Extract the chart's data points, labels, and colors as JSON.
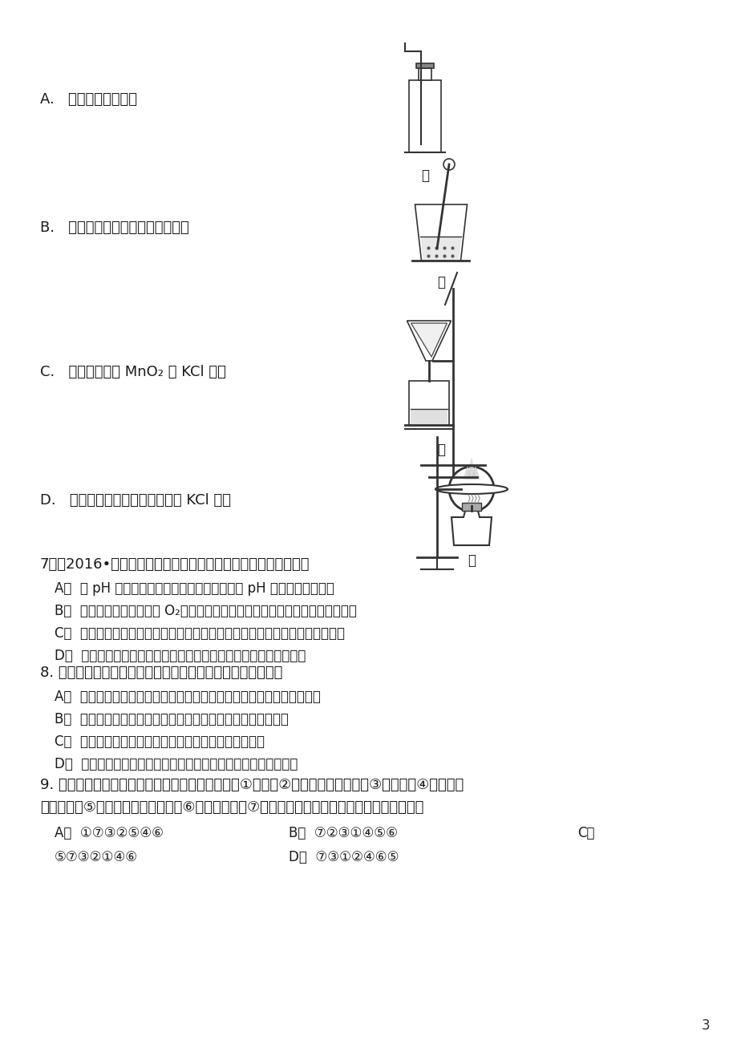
{
  "bg_color": "#ffffff",
  "text_color": "#1a1a1a",
  "page_number": "3",
  "q7_title": "7．（2016•应城市一模）下列有关实验的叙述正确的是（　　）",
  "q7_options": [
    "A．  用 pH 试纸测得未知溶液的酸碱度时，应将 pH 试纸预先用水湿润",
    "B．  实验室用高锰酸钾制取 O₂，在实验结束时应先停止加热，再将导管移出水面",
    "C．  稀释浓硫酸时，要把浓硫酸缓慢注入盛有水的烧杯中，并用玻璃棒不断搅拌",
    "D．  在粗盐提纯实验中，蒸发溶剂时，待水全部蒸干后，再停止加热"
  ],
  "q8_title": "8. 推理是一种重要的学习方法，下列推理中正确的是（　　）",
  "q8_options": [
    "A．  单质是由一种元素组成的，因此由一种元素组成的纯净物一定是单质",
    "B．  中和反应一定有盐生成，则有盐生成的反应一定是中和反应",
    "C．  分子是构成物质的微粒，因此物质都是由分子构成的",
    "D．  氧化物中含有氧元素，因此含有氧元素的化合物一定是氧化物"
  ],
  "q9_title": "9. 实验室用高锰酸钾制取氧气时有如下操作步骤：①加热，②检查装置的气密性，③装药品，④用排水集",
  "q9_title2": "气法收集，⑤从水槽中取出导气管，⑥熄灭酒精灯，⑦连接仪器。其中操作顺序正确的是（　　）",
  "q9_options_row1": [
    "A．  ①⑦③②⑤④⑥",
    "B．  ⑦②③①④⑤⑥",
    "C．"
  ],
  "q9_options_row2": [
    "⑤⑦③②①④⑥",
    "D．  ⑦③①②④⑥⑤"
  ]
}
